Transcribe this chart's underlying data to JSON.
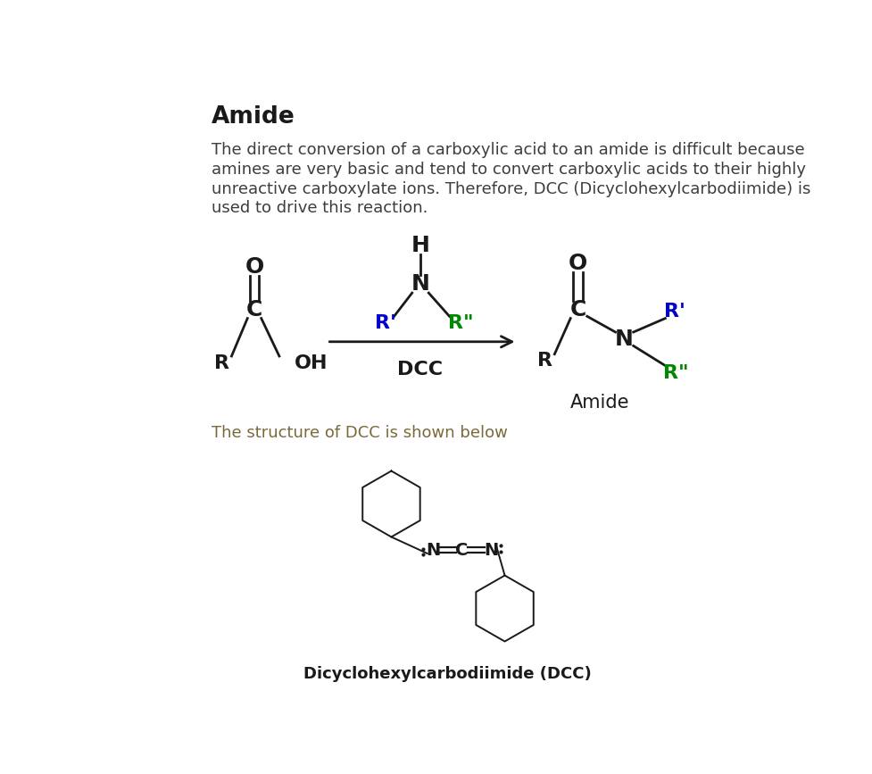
{
  "title": "Amide",
  "body_text_lines": [
    "The direct conversion of a carboxylic acid to an amide is difficult because",
    "amines are very basic and tend to convert carboxylic acids to their highly",
    "unreactive carboxylate ions. Therefore, DCC (Dicyclohexylcarbodiimide) is",
    "used to drive this reaction."
  ],
  "dcc_text": "The structure of DCC is shown below",
  "dcc_label": "Dicyclohexylcarbodiimide (DCC)",
  "bg_color": "#ffffff",
  "title_color": "#1a1a1a",
  "body_color": "#3d3d3d",
  "black": "#1a1a1a",
  "blue": "#0000cc",
  "green": "#008800",
  "dcc_color": "#7a6a3a"
}
